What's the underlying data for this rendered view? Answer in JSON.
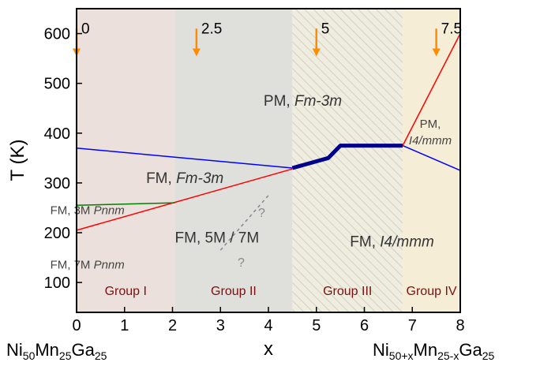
{
  "chart_data": {
    "type": "line",
    "xlabel": "x",
    "ylabel": "T (K)",
    "xlim": [
      0,
      8
    ],
    "ylim": [
      40,
      650
    ],
    "x_ticks": [
      0,
      1,
      2,
      3,
      4,
      5,
      6,
      7,
      8
    ],
    "y_ticks": [
      100,
      200,
      300,
      400,
      500,
      600
    ],
    "x_left_compound": {
      "base": "Ni",
      "s1": "50",
      "m1": "Mn",
      "s2": "25",
      "g": "Ga",
      "s3": "25"
    },
    "x_right_compound": {
      "base": "Ni",
      "s1": "50+x",
      "m1": "Mn",
      "s2": "25-x",
      "g": "Ga",
      "s3": "25"
    },
    "regions": [
      {
        "label": "Group I",
        "x_range": [
          0,
          2.05
        ],
        "color": "#ece0dc"
      },
      {
        "label": "Group II",
        "x_range": [
          2.05,
          4.5
        ],
        "color": "#dfe0dc"
      },
      {
        "label": "Group III",
        "x_range": [
          4.5,
          6.8
        ],
        "color": "#efece0",
        "hatched": true
      },
      {
        "label": "Group IV",
        "x_range": [
          6.8,
          8
        ],
        "color": "#f6edd6"
      }
    ],
    "series": [
      {
        "color": "#0000ff",
        "width": 1.5,
        "x": [
          0,
          4.5
        ],
        "y": [
          370,
          330
        ]
      },
      {
        "color": "#0000ff",
        "width": 1.5,
        "x": [
          6.8,
          8
        ],
        "y": [
          375,
          325
        ]
      },
      {
        "color": "#ff0000",
        "width": 1.5,
        "x": [
          0,
          4.5
        ],
        "y": [
          205,
          328
        ]
      },
      {
        "color": "#ff0000",
        "width": 1.5,
        "x": [
          6.8,
          8
        ],
        "y": [
          375,
          600
        ]
      },
      {
        "color": "#008000",
        "width": 1.5,
        "x": [
          0,
          2.05
        ],
        "y": [
          255,
          260
        ]
      },
      {
        "color": "#00008b",
        "width": 5,
        "x": [
          4.5,
          5.25,
          5.5,
          6.8
        ],
        "y": [
          330,
          350,
          375,
          375
        ]
      },
      {
        "color": "#888888",
        "width": 1.5,
        "dashed": true,
        "x": [
          3.0,
          4.0
        ],
        "y": [
          165,
          275
        ]
      }
    ],
    "arrows": [
      {
        "label": "0",
        "x": 0
      },
      {
        "label": "2.5",
        "x": 2.5
      },
      {
        "label": "5",
        "x": 5
      },
      {
        "label": "7.5",
        "x": 7.5
      }
    ],
    "annotations": [
      {
        "id": "pm-cubic",
        "pre": "PM, ",
        "ital": "Fm-3m",
        "x": 3.9,
        "y": 455
      },
      {
        "id": "fm-cubic",
        "pre": "FM, ",
        "ital": "Fm-3m",
        "x": 1.45,
        "y": 300
      },
      {
        "id": "fm-3m",
        "pre": "FM, 3M ",
        "ital": "Pnnm",
        "x": -0.55,
        "y": 237
      },
      {
        "id": "fm-5m7m",
        "pre": "FM, 5M / 7M",
        "ital": "",
        "x": 2.05,
        "y": 180
      },
      {
        "id": "fm-tetra",
        "pre": "FM, ",
        "ital": "I4/mmm",
        "x": 5.7,
        "y": 172
      },
      {
        "id": "fm-7m",
        "pre": "FM, 7M ",
        "ital": "Pnnm",
        "x": -0.55,
        "y": 128
      }
    ],
    "pm_tetra": {
      "line1": "PM,",
      "line2": "I4/mmm"
    },
    "question_marks": [
      "?",
      "?"
    ]
  }
}
